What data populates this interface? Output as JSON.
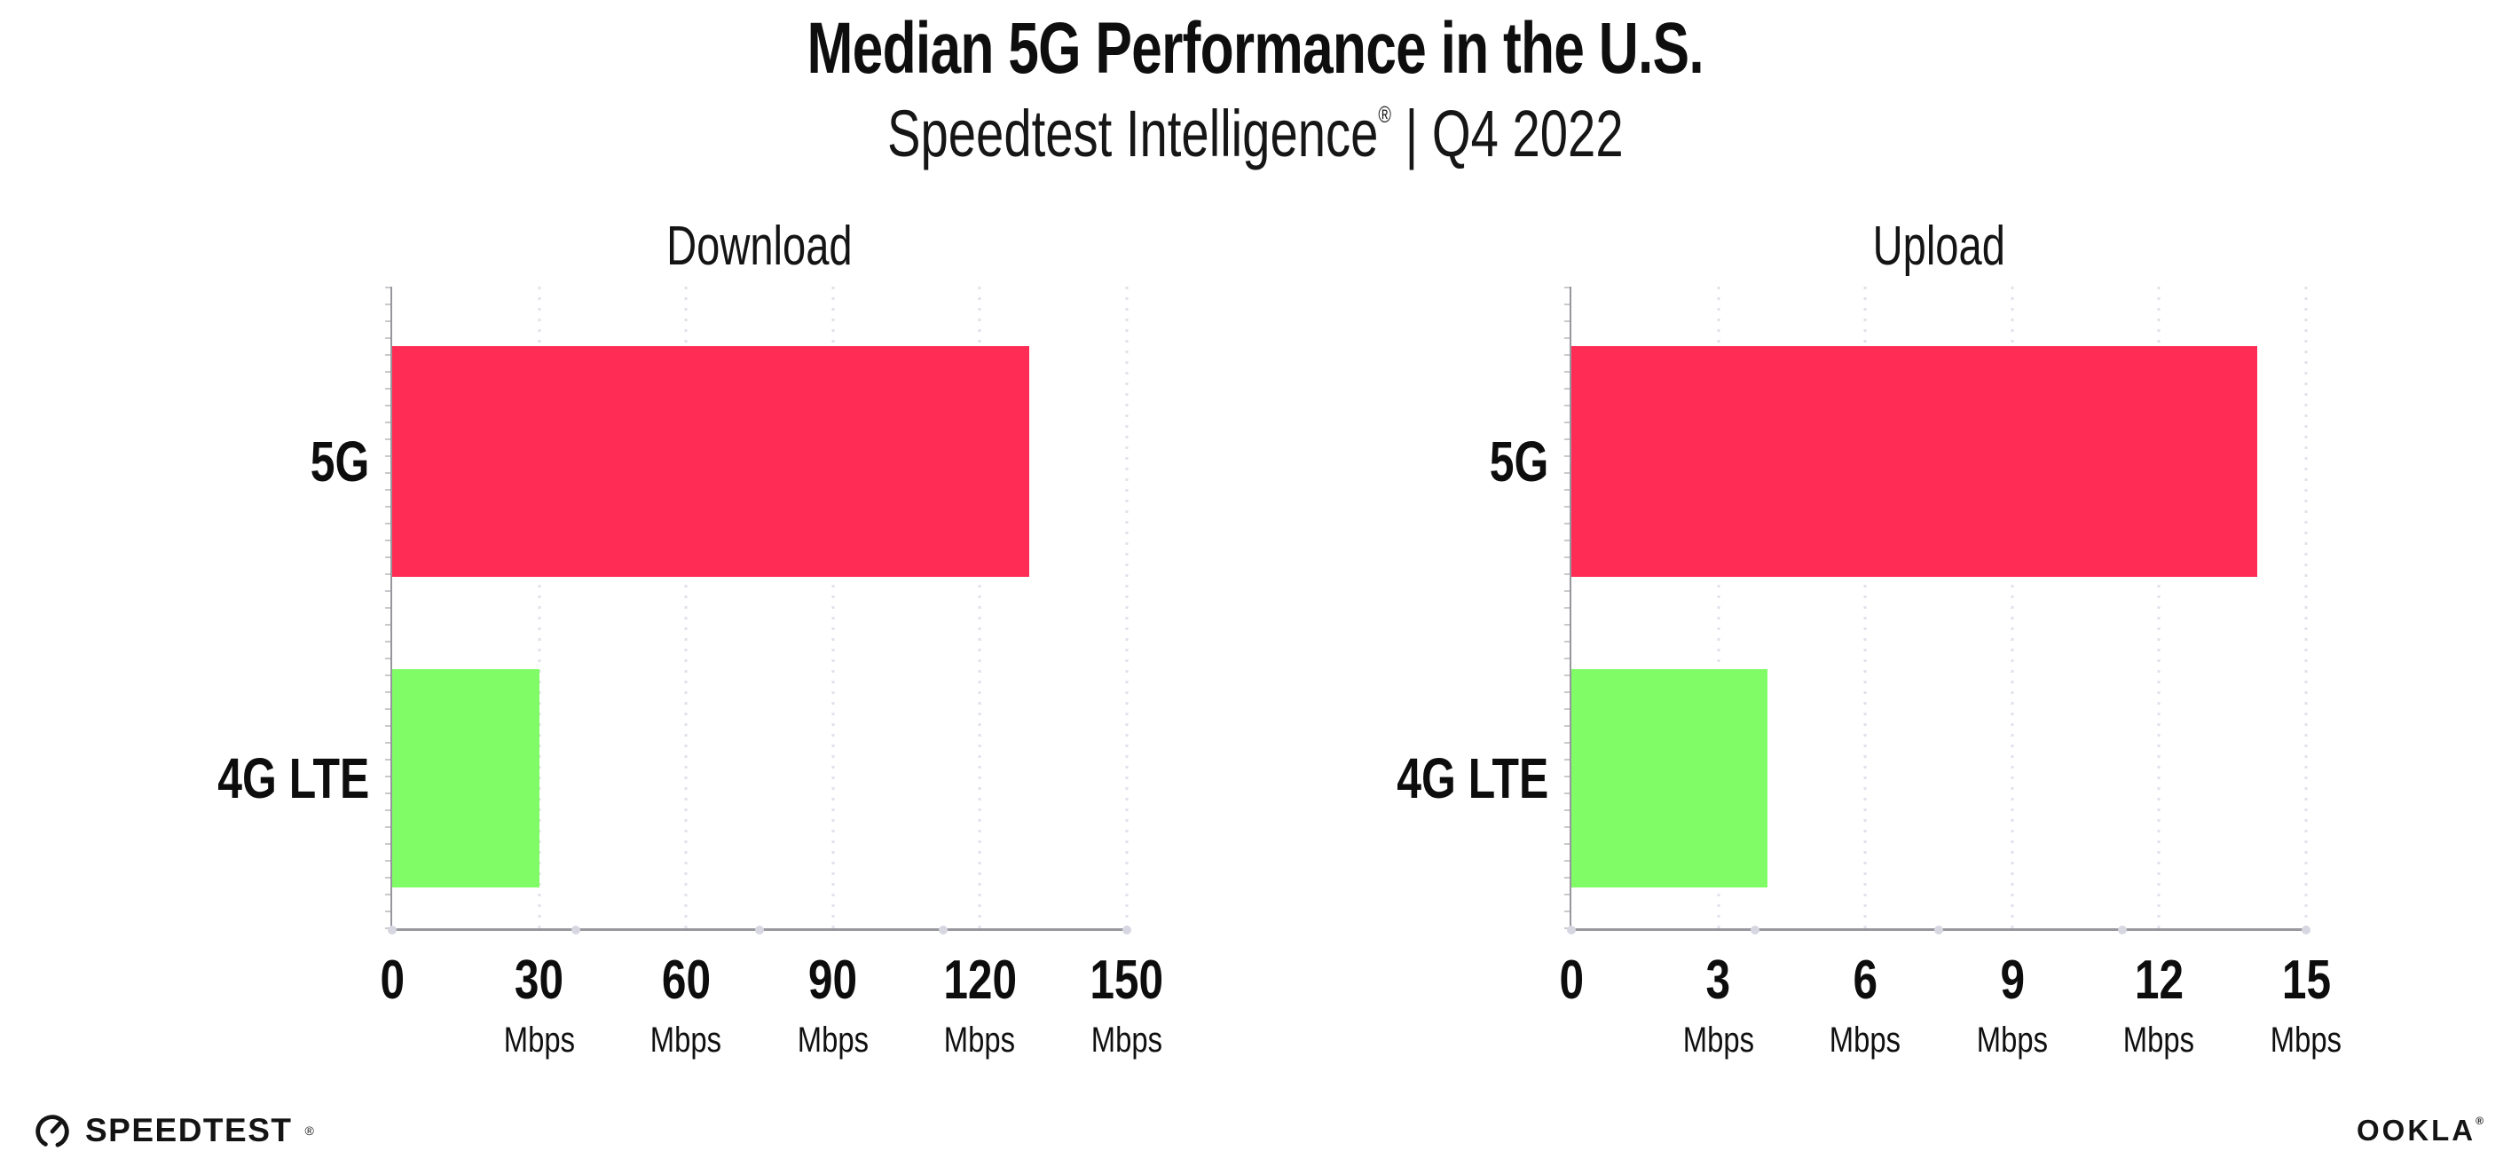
{
  "title": "Median 5G Performance in the U.S.",
  "subtitle": {
    "main": "Speedtest Intelligence",
    "mark": "®",
    "rest": " | Q4 2022"
  },
  "colors": {
    "bar_5g": "#FF2D55",
    "bar_4g_lte": "#80FC66",
    "axis": "#98989e",
    "gridline": "#e1e1eb",
    "text": "#111111"
  },
  "chart_data": [
    {
      "type": "bar",
      "orientation": "horizontal",
      "title": "Download",
      "categories": [
        "5G",
        "4G LTE"
      ],
      "values": [
        130,
        30
      ],
      "unit": "Mbps",
      "xlim": [
        0,
        150
      ],
      "xticks": [
        0,
        30,
        60,
        90,
        120,
        150
      ],
      "bar_colors": [
        "#FF2D55",
        "#80FC66"
      ],
      "grid": "vertical-dotted",
      "legend": "none"
    },
    {
      "type": "bar",
      "orientation": "horizontal",
      "title": "Upload",
      "categories": [
        "5G",
        "4G LTE"
      ],
      "values": [
        14,
        4
      ],
      "unit": "Mbps",
      "xlim": [
        0,
        15
      ],
      "xticks": [
        0,
        3,
        6,
        9,
        12,
        15
      ],
      "bar_colors": [
        "#FF2D55",
        "#80FC66"
      ],
      "grid": "vertical-dotted",
      "legend": "none"
    }
  ],
  "footer": {
    "left_logo": "SPEEDTEST",
    "left_logo_mark": "®",
    "left_logo_icon": "speedtest-gauge-icon",
    "right_logo": "OOKLA",
    "right_logo_mark": "®"
  }
}
